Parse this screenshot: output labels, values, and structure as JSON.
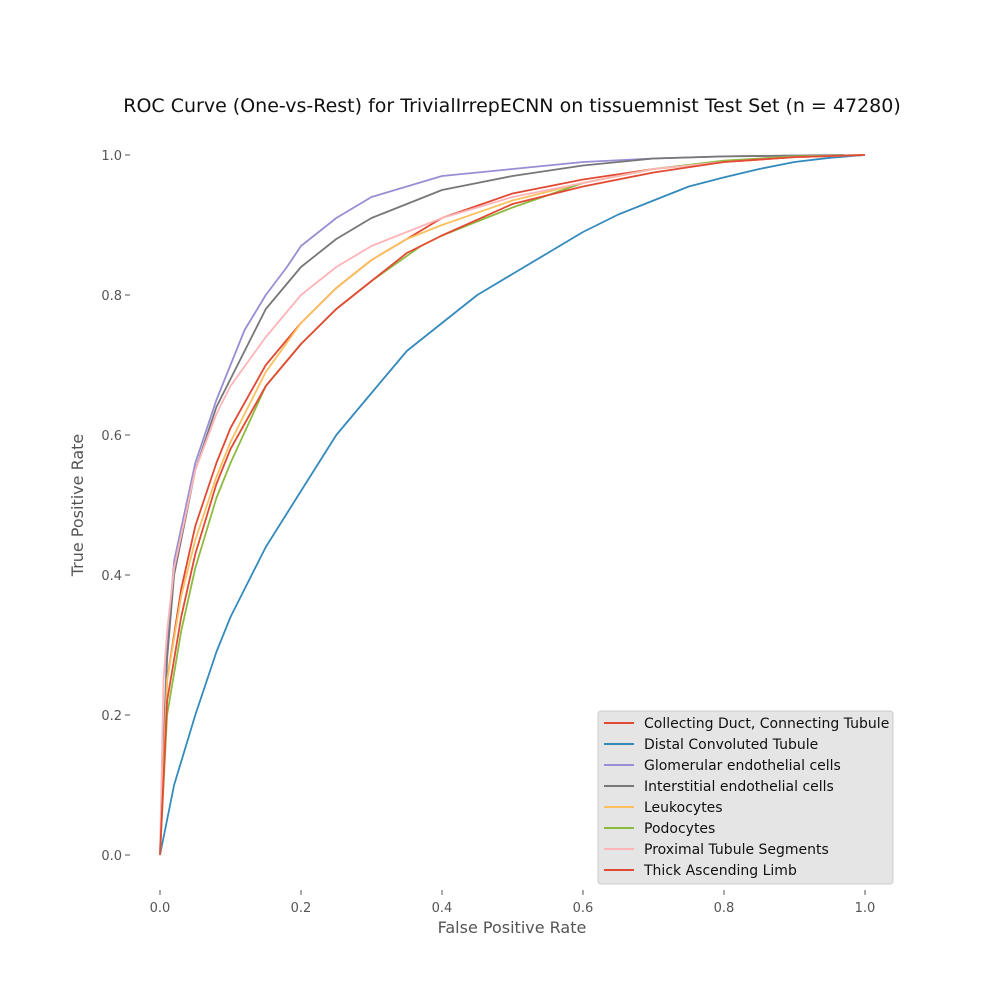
{
  "chart_data": {
    "type": "line",
    "title": "ROC Curve (One-vs-Rest) for TrivialIrrepECNN on tissuemnist Test Set (n = 47280)",
    "xlabel": "False Positive Rate",
    "ylabel": "True Positive Rate",
    "xlim": [
      0.0,
      1.0
    ],
    "ylim": [
      0.0,
      1.0
    ],
    "x_ticks": [
      "0.0",
      "0.2",
      "0.4",
      "0.6",
      "0.8",
      "1.0"
    ],
    "y_ticks": [
      "0.0",
      "0.2",
      "0.4",
      "0.6",
      "0.8",
      "1.0"
    ],
    "grid": false,
    "legend_position": "lower-right",
    "series": [
      {
        "name": "Collecting Duct, Connecting Tubule",
        "color": "#e24a33",
        "x": [
          0,
          0.01,
          0.03,
          0.05,
          0.08,
          0.1,
          0.15,
          0.2,
          0.25,
          0.3,
          0.35,
          0.4,
          0.5,
          0.6,
          0.7,
          0.8,
          0.9,
          1.0
        ],
        "y": [
          0,
          0.25,
          0.38,
          0.47,
          0.56,
          0.61,
          0.7,
          0.76,
          0.81,
          0.85,
          0.88,
          0.91,
          0.945,
          0.965,
          0.98,
          0.99,
          0.997,
          1.0
        ]
      },
      {
        "name": "Distal Convoluted Tubule",
        "color": "#348abd",
        "x": [
          0,
          0.02,
          0.05,
          0.08,
          0.1,
          0.15,
          0.2,
          0.25,
          0.3,
          0.35,
          0.4,
          0.45,
          0.5,
          0.55,
          0.6,
          0.65,
          0.7,
          0.75,
          0.8,
          0.85,
          0.9,
          0.95,
          1.0
        ],
        "y": [
          0,
          0.1,
          0.2,
          0.29,
          0.34,
          0.44,
          0.52,
          0.6,
          0.66,
          0.72,
          0.76,
          0.8,
          0.83,
          0.86,
          0.89,
          0.915,
          0.935,
          0.955,
          0.968,
          0.98,
          0.99,
          0.996,
          1.0
        ]
      },
      {
        "name": "Glomerular endothelial cells",
        "color": "#988ed5",
        "x": [
          0,
          0.01,
          0.02,
          0.05,
          0.08,
          0.1,
          0.12,
          0.15,
          0.18,
          0.2,
          0.25,
          0.3,
          0.35,
          0.4,
          0.5,
          0.6,
          0.7,
          0.8,
          1.0
        ],
        "y": [
          0,
          0.3,
          0.42,
          0.56,
          0.65,
          0.7,
          0.75,
          0.8,
          0.84,
          0.87,
          0.91,
          0.94,
          0.955,
          0.97,
          0.98,
          0.99,
          0.995,
          0.998,
          1.0
        ]
      },
      {
        "name": "Interstitial endothelial cells",
        "color": "#777777",
        "x": [
          0,
          0.01,
          0.02,
          0.05,
          0.08,
          0.1,
          0.12,
          0.15,
          0.2,
          0.25,
          0.3,
          0.35,
          0.4,
          0.5,
          0.6,
          0.7,
          0.8,
          0.97
        ],
        "y": [
          0,
          0.28,
          0.4,
          0.55,
          0.64,
          0.68,
          0.72,
          0.78,
          0.84,
          0.88,
          0.91,
          0.93,
          0.95,
          0.97,
          0.985,
          0.995,
          0.998,
          1.0
        ]
      },
      {
        "name": "Leukocytes",
        "color": "#fbc15e",
        "x": [
          0,
          0.01,
          0.03,
          0.05,
          0.08,
          0.1,
          0.12,
          0.15,
          0.2,
          0.25,
          0.3,
          0.35,
          0.4,
          0.5,
          0.6,
          0.7,
          0.8,
          0.9,
          1.0
        ],
        "y": [
          0,
          0.25,
          0.37,
          0.45,
          0.54,
          0.59,
          0.63,
          0.69,
          0.76,
          0.81,
          0.85,
          0.88,
          0.9,
          0.935,
          0.96,
          0.98,
          0.99,
          0.997,
          1.0
        ]
      },
      {
        "name": "Podocytes",
        "color": "#8eba42",
        "x": [
          0,
          0.01,
          0.03,
          0.05,
          0.08,
          0.1,
          0.15,
          0.2,
          0.25,
          0.3,
          0.37,
          0.4,
          0.5,
          0.6,
          0.7,
          0.8,
          0.9,
          1.0
        ],
        "y": [
          0,
          0.2,
          0.32,
          0.41,
          0.51,
          0.56,
          0.67,
          0.73,
          0.78,
          0.82,
          0.87,
          0.885,
          0.925,
          0.96,
          0.98,
          0.992,
          0.998,
          1.0
        ]
      },
      {
        "name": "Proximal Tubule Segments",
        "color": "#ffb5b8",
        "x": [
          0,
          0.005,
          0.01,
          0.02,
          0.05,
          0.08,
          0.1,
          0.15,
          0.2,
          0.25,
          0.3,
          0.35,
          0.4,
          0.5,
          0.6,
          0.7,
          0.8,
          0.9,
          1.0
        ],
        "y": [
          0,
          0.25,
          0.32,
          0.41,
          0.55,
          0.63,
          0.67,
          0.74,
          0.8,
          0.84,
          0.87,
          0.89,
          0.91,
          0.94,
          0.96,
          0.98,
          0.99,
          0.997,
          1.0
        ]
      },
      {
        "name": "Thick Ascending Limb",
        "color": "#e24a33",
        "x": [
          0,
          0.01,
          0.03,
          0.05,
          0.08,
          0.1,
          0.15,
          0.2,
          0.25,
          0.3,
          0.35,
          0.4,
          0.5,
          0.6,
          0.7,
          0.8,
          0.9,
          1.0
        ],
        "y": [
          0,
          0.22,
          0.34,
          0.43,
          0.53,
          0.58,
          0.67,
          0.73,
          0.78,
          0.82,
          0.86,
          0.885,
          0.93,
          0.955,
          0.975,
          0.99,
          0.997,
          1.0
        ]
      }
    ]
  }
}
